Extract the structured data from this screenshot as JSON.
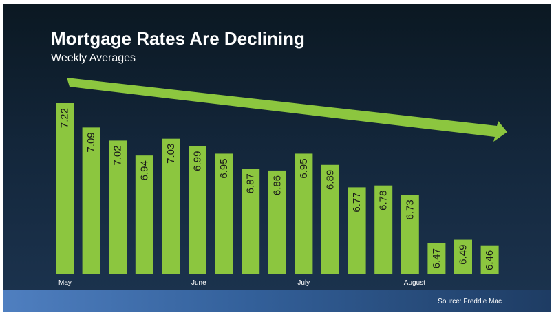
{
  "slide": {
    "title": "Mortgage Rates Are Declining",
    "subtitle": "Weekly Averages",
    "source": "Source: Freddie Mac"
  },
  "colors": {
    "bar": "#8cc63f",
    "arrow": "#8cc63f",
    "text": "#ffffff",
    "bar_label": "#1a1a1a"
  },
  "chart_data": {
    "type": "bar",
    "title": "Mortgage Rates Are Declining",
    "subtitle": "Weekly Averages",
    "values": [
      7.22,
      7.09,
      7.02,
      6.94,
      7.03,
      6.99,
      6.95,
      6.87,
      6.86,
      6.95,
      6.89,
      6.77,
      6.78,
      6.73,
      6.47,
      6.49,
      6.46
    ],
    "data_labels": [
      "7.22",
      "7.09",
      "7.02",
      "6.94",
      "7.03",
      "6.99",
      "6.95",
      "6.87",
      "6.86",
      "6.95",
      "6.89",
      "6.77",
      "6.78",
      "6.73",
      "6.47",
      "6.49",
      "6.46"
    ],
    "x_tick_labels": [
      {
        "index": 0,
        "label": "May"
      },
      {
        "index": 5,
        "label": "June"
      },
      {
        "index": 9,
        "label": "July"
      },
      {
        "index": 13,
        "label": "August"
      }
    ],
    "trend_arrow": "downward",
    "grid": false,
    "legend": "none"
  }
}
